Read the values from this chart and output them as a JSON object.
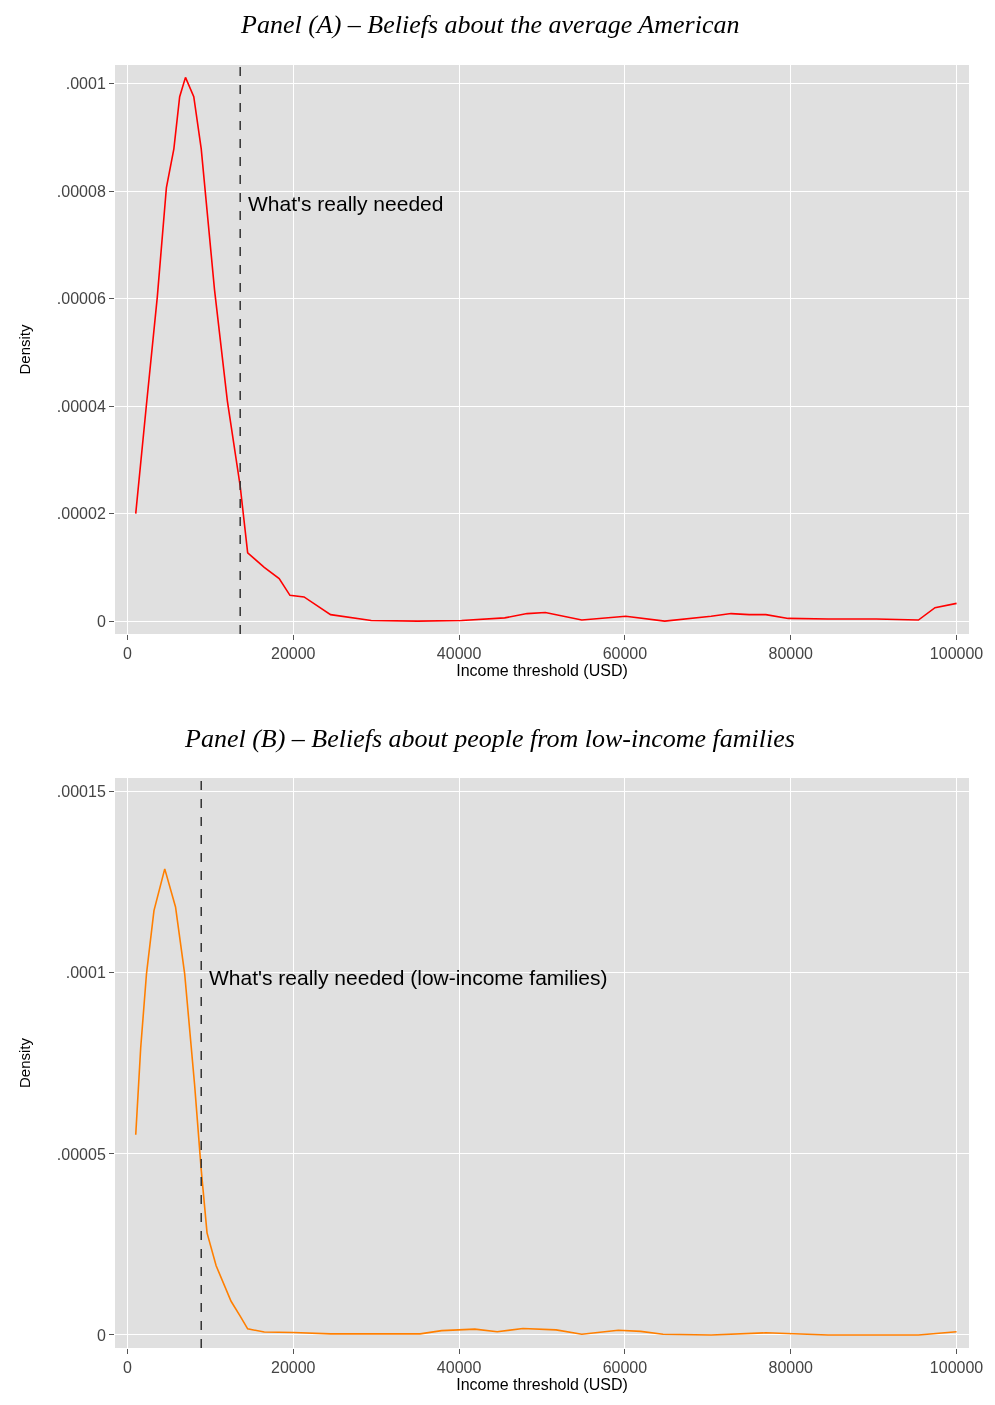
{
  "chart_data": [
    {
      "type": "line",
      "title": "Panel (A) – Beliefs about the average American",
      "xlabel": "Income threshold (USD)",
      "ylabel": "Density",
      "x": [
        1000,
        2300,
        3600,
        4700,
        5600,
        6300,
        7000,
        8000,
        8900,
        10500,
        12050,
        13600,
        14500,
        16500,
        18300,
        19600,
        21300,
        24500,
        29400,
        35000,
        40300,
        45500,
        48200,
        50400,
        54800,
        60100,
        64800,
        70400,
        72800,
        75000,
        77000,
        79700,
        84500,
        90300,
        95400,
        97400,
        100000
      ],
      "series": [
        {
          "color": "#ff0000",
          "values": [
            2e-05,
            4.04e-05,
            6.03e-05,
            8.07e-05,
            8.79e-05,
            9.76e-05,
            0.0001012,
            9.76e-05,
            8.79e-05,
            6.17e-05,
            4.1e-05,
            2.51e-05,
            1.27e-05,
            1e-05,
            7.9e-06,
            4.8e-06,
            4.5e-06,
            1.2e-06,
            1e-07,
            0,
            1e-07,
            6e-07,
            1.4e-06,
            1.6e-06,
            2e-07,
            9e-07,
            0,
            9e-07,
            1.4e-06,
            1.2e-06,
            1.2e-06,
            5e-07,
            4e-07,
            4e-07,
            2e-07,
            2.5e-06,
            3.3e-06
          ]
        }
      ],
      "xlim": [
        -1500,
        101500
      ],
      "xticks": [
        0,
        20000,
        40000,
        60000,
        80000,
        100000
      ],
      "ylim": [
        -2.4e-06,
        0.0001035
      ],
      "yticks": [
        0,
        {
          "value": 2e-05,
          "label": ".00002"
        },
        {
          "value": 4e-05,
          "label": ".00004"
        },
        {
          "value": 6e-05,
          "label": ".00006"
        },
        {
          "value": 8e-05,
          "label": ".00008"
        },
        {
          "value": 0.0001,
          "label": ".0001"
        }
      ],
      "ref_lines": [
        {
          "axis": "x",
          "value": 13600,
          "label": "What's really needed",
          "color": "#333333",
          "line_style": "dashed"
        }
      ],
      "grid": true
    },
    {
      "type": "line",
      "title": "Panel (B) – Beliefs about people from low-income families",
      "xlabel": "Income threshold (USD)",
      "ylabel": "Density",
      "x": [
        1000,
        1600,
        2300,
        3200,
        4500,
        5800,
        6900,
        8100,
        8900,
        9600,
        10700,
        12500,
        13600,
        14500,
        16500,
        20000,
        24500,
        35300,
        37900,
        41900,
        44600,
        47700,
        51700,
        54800,
        59200,
        61900,
        64600,
        70400,
        77000,
        84500,
        95400,
        100000
      ],
      "series": [
        {
          "color": "#ff7f00",
          "values": [
            5.53e-05,
            7.93e-05,
            9.98e-05,
            0.0001172,
            0.0001287,
            0.0001182,
            9.98e-05,
            6.91e-05,
            4.56e-05,
            2.82e-05,
            1.91e-05,
            9.3e-06,
            5.2e-06,
            1.7e-06,
            8e-07,
            7e-07,
            3e-07,
            3e-07,
            1.2e-06,
            1.6e-06,
            9e-07,
            1.8e-06,
            1.4e-06,
            2e-07,
            1.3e-06,
            1e-06,
            2e-07,
            0,
            6e-07,
            0,
            0,
            9e-07
          ]
        }
      ],
      "xlim": [
        -1500,
        101500
      ],
      "xticks": [
        0,
        20000,
        40000,
        60000,
        80000,
        100000
      ],
      "ylim": [
        -3.6e-06,
        0.0001538
      ],
      "yticks": [
        0,
        {
          "value": 5e-05,
          "label": ".00005"
        },
        {
          "value": 0.0001,
          "label": ".0001"
        },
        {
          "value": 0.00015,
          "label": ".00015"
        }
      ],
      "ref_lines": [
        {
          "axis": "x",
          "value": 8900,
          "label": "What's really needed (low-income families)",
          "color": "#333333",
          "line_style": "dashed"
        }
      ],
      "grid": true
    }
  ]
}
